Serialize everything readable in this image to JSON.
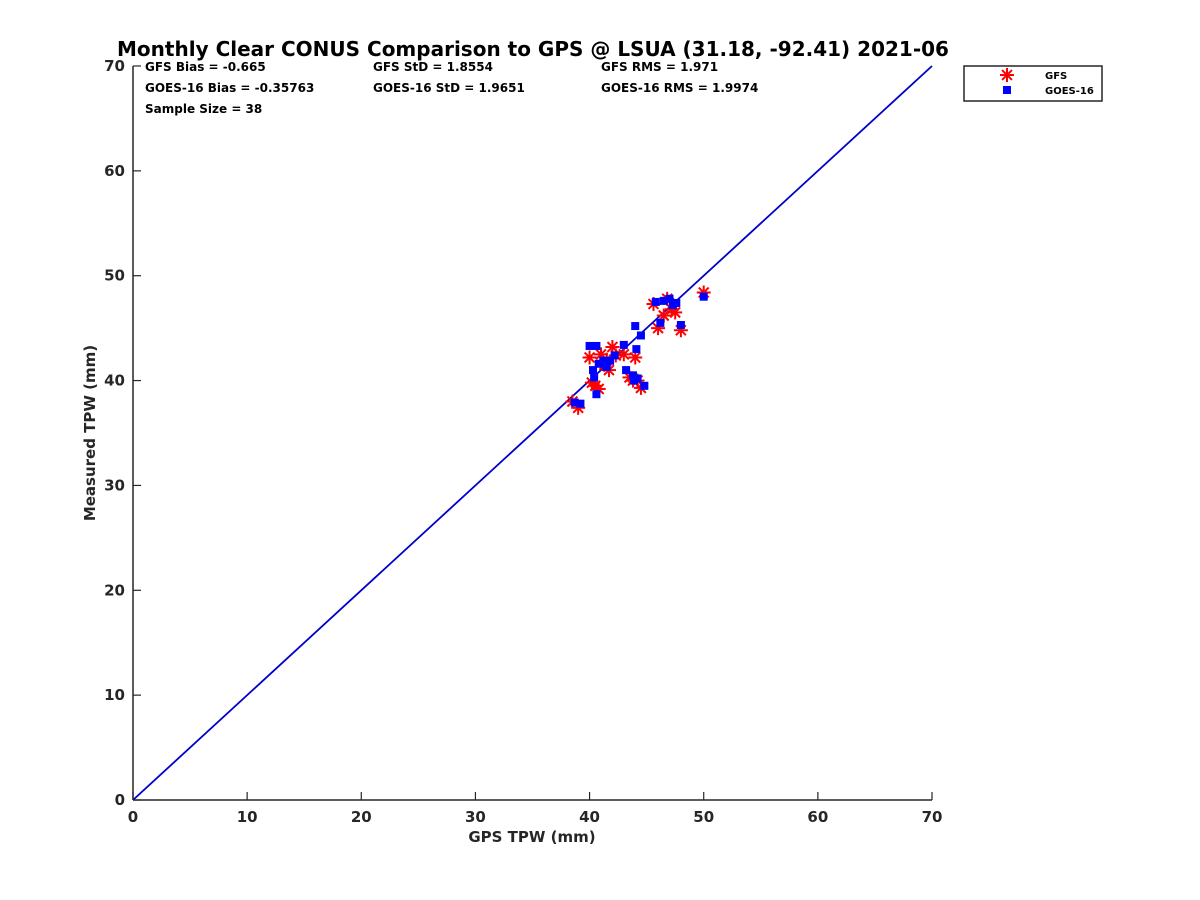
{
  "chart_data": {
    "type": "scatter",
    "title": "Monthly Clear CONUS Comparison to GPS @ LSUA (31.18, -92.41) 2021-06",
    "xlabel": "GPS TPW (mm)",
    "ylabel": "Measured TPW (mm)",
    "xlim": [
      0,
      70
    ],
    "ylim": [
      0,
      70
    ],
    "x_ticks": [
      "0",
      "10",
      "20",
      "30",
      "40",
      "50",
      "60",
      "70"
    ],
    "y_ticks": [
      "0",
      "10",
      "20",
      "30",
      "40",
      "50",
      "60",
      "70"
    ],
    "grid": false,
    "legend_position": "top-right-outside",
    "reference_line": {
      "x": [
        0,
        70
      ],
      "y": [
        0,
        70
      ],
      "color": "#0000cc"
    },
    "stats": [
      "GFS Bias = -0.665",
      "GFS StD = 1.8554",
      "GFS RMS = 1.971",
      "GOES-16 Bias = -0.35763",
      "GOES-16 StD = 1.9651",
      "GOES-16 RMS = 1.9974",
      "Sample Size = 38"
    ],
    "series": [
      {
        "name": "GFS",
        "marker": "asterisk",
        "color": "#ff0000",
        "points": [
          [
            38.5,
            38.0
          ],
          [
            39.0,
            37.4
          ],
          [
            40.0,
            42.2
          ],
          [
            40.2,
            39.8
          ],
          [
            40.5,
            39.5
          ],
          [
            40.8,
            39.2
          ],
          [
            41.0,
            42.5
          ],
          [
            41.3,
            41.5
          ],
          [
            41.5,
            42.0
          ],
          [
            41.7,
            41.0
          ],
          [
            42.0,
            43.2
          ],
          [
            42.3,
            42.4
          ],
          [
            43.0,
            42.5
          ],
          [
            43.5,
            40.3
          ],
          [
            43.8,
            40.0
          ],
          [
            44.0,
            42.2
          ],
          [
            44.2,
            40.0
          ],
          [
            44.5,
            39.3
          ],
          [
            45.6,
            47.3
          ],
          [
            46.0,
            45.0
          ],
          [
            46.5,
            46.2
          ],
          [
            46.8,
            47.8
          ],
          [
            47.2,
            46.8
          ],
          [
            47.5,
            46.5
          ],
          [
            48.0,
            44.8
          ],
          [
            50.0,
            48.4
          ]
        ]
      },
      {
        "name": "GOES-16",
        "marker": "square",
        "color": "#0000ff",
        "points": [
          [
            38.7,
            37.9
          ],
          [
            39.2,
            37.8
          ],
          [
            40.0,
            43.3
          ],
          [
            40.3,
            41.0
          ],
          [
            40.4,
            40.3
          ],
          [
            40.6,
            43.3
          ],
          [
            40.6,
            38.7
          ],
          [
            40.8,
            41.6
          ],
          [
            41.2,
            41.9
          ],
          [
            41.5,
            41.3
          ],
          [
            41.8,
            41.9
          ],
          [
            42.2,
            42.4
          ],
          [
            43.0,
            43.4
          ],
          [
            43.2,
            41.0
          ],
          [
            43.8,
            40.5
          ],
          [
            43.9,
            40.0
          ],
          [
            44.0,
            45.2
          ],
          [
            44.1,
            43.0
          ],
          [
            44.2,
            40.2
          ],
          [
            44.5,
            44.3
          ],
          [
            44.8,
            39.5
          ],
          [
            45.8,
            47.5
          ],
          [
            46.2,
            45.5
          ],
          [
            46.5,
            47.6
          ],
          [
            47.0,
            47.8
          ],
          [
            47.3,
            47.2
          ],
          [
            47.6,
            47.4
          ],
          [
            48.0,
            45.3
          ],
          [
            50.0,
            48.0
          ]
        ]
      }
    ]
  }
}
